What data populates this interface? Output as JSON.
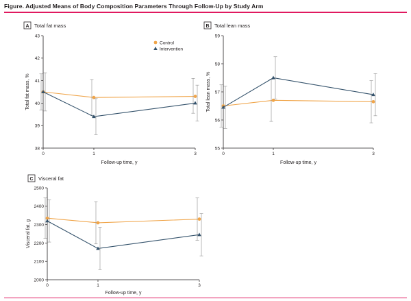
{
  "figure": {
    "title": "Figure. Adjusted Means of Body Composition Parameters Through Follow-Up by Study Arm"
  },
  "colors": {
    "control": "#f0a54a",
    "intervention": "#34526b",
    "errorbar": "#8c8c8c",
    "axis": "#231f20",
    "accent_rule": "#e0195f"
  },
  "chart_data": [
    {
      "panel": "A",
      "title": "Total fat mass",
      "type": "line",
      "xlabel": "Follow-up time, y",
      "ylabel": "Total fat mass, %",
      "x": [
        0,
        1,
        3
      ],
      "x_ticks": [
        "0",
        "1",
        "3"
      ],
      "ylim": [
        38,
        43
      ],
      "y_ticks": [
        38,
        39,
        40,
        41,
        42,
        43
      ],
      "legend": "top-right",
      "series": [
        {
          "name": "Control",
          "marker": "circle",
          "values": [
            40.5,
            40.25,
            40.3
          ],
          "lower": [
            39.7,
            39.45,
            39.55
          ],
          "upper": [
            41.3,
            41.05,
            41.1
          ]
        },
        {
          "name": "Intervention",
          "marker": "triangle",
          "values": [
            40.5,
            39.4,
            40.0
          ],
          "lower": [
            39.65,
            38.6,
            39.2
          ],
          "upper": [
            41.35,
            40.2,
            40.8
          ]
        }
      ]
    },
    {
      "panel": "B",
      "title": "Total lean mass",
      "type": "line",
      "xlabel": "Follow-up time, y",
      "ylabel": "Total lean mass, %",
      "x": [
        0,
        1,
        3
      ],
      "x_ticks": [
        "0",
        "1",
        "3"
      ],
      "ylim": [
        55,
        59
      ],
      "y_ticks": [
        55,
        56,
        57,
        58,
        59
      ],
      "series": [
        {
          "name": "Control",
          "marker": "circle",
          "values": [
            56.5,
            56.7,
            56.65
          ],
          "lower": [
            55.75,
            55.95,
            55.9
          ],
          "upper": [
            57.25,
            57.45,
            57.4
          ]
        },
        {
          "name": "Intervention",
          "marker": "triangle",
          "values": [
            56.45,
            57.5,
            56.9
          ],
          "lower": [
            55.7,
            56.75,
            56.15
          ],
          "upper": [
            57.2,
            58.25,
            57.65
          ]
        }
      ]
    },
    {
      "panel": "C",
      "title": "Visceral fat",
      "type": "line",
      "xlabel": "Follow-up time, y",
      "ylabel": "Visceral fat, g",
      "x": [
        0,
        1,
        3
      ],
      "x_ticks": [
        "0",
        "1",
        "3"
      ],
      "ylim": [
        2000,
        2500
      ],
      "y_ticks": [
        2000,
        2100,
        2200,
        2300,
        2400,
        2500
      ],
      "series": [
        {
          "name": "Control",
          "marker": "circle",
          "values": [
            2335,
            2310,
            2330
          ],
          "lower": [
            2225,
            2195,
            2215
          ],
          "upper": [
            2445,
            2425,
            2445
          ]
        },
        {
          "name": "Intervention",
          "marker": "triangle",
          "values": [
            2320,
            2170,
            2245
          ],
          "lower": [
            2205,
            2055,
            2130
          ],
          "upper": [
            2435,
            2285,
            2360
          ]
        }
      ]
    }
  ]
}
